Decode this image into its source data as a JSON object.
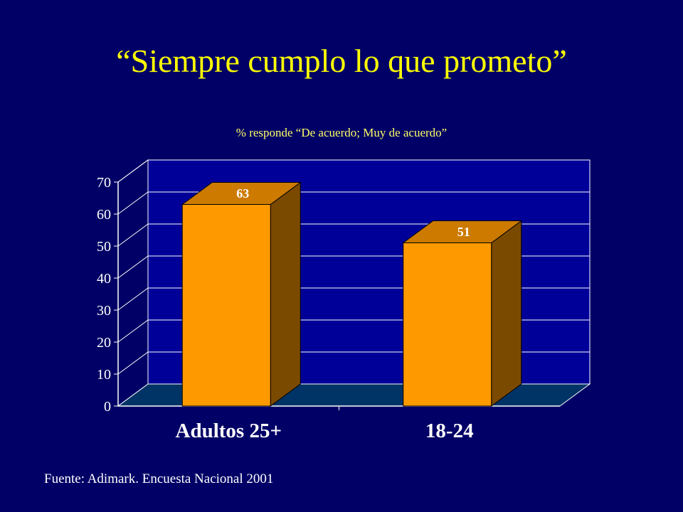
{
  "slide": {
    "title": "“Siempre cumplo lo que prometo”",
    "subtitle": "% responde “De acuerdo; Muy de acuerdo”",
    "footer": "Fuente: Adimark. Encuesta Nacional 2001"
  },
  "colors": {
    "background": "#000066",
    "title": "#ffff00",
    "plot_back_wall": "#000099",
    "plot_floor": "#003366",
    "bar_front": "#ff9900",
    "bar_top": "#cc7a00",
    "bar_side": "#7a4a00",
    "grid": "#ffffff"
  },
  "chart_data": {
    "type": "bar",
    "style": "3d",
    "categories": [
      "Adultos 25+",
      "18-24"
    ],
    "values": [
      63,
      51
    ],
    "data_labels": [
      "63",
      "51"
    ],
    "ylim": [
      0,
      70
    ],
    "yticks": [
      "0",
      "10",
      "20",
      "30",
      "40",
      "50",
      "60",
      "70"
    ],
    "grid": true,
    "legend": "none"
  }
}
